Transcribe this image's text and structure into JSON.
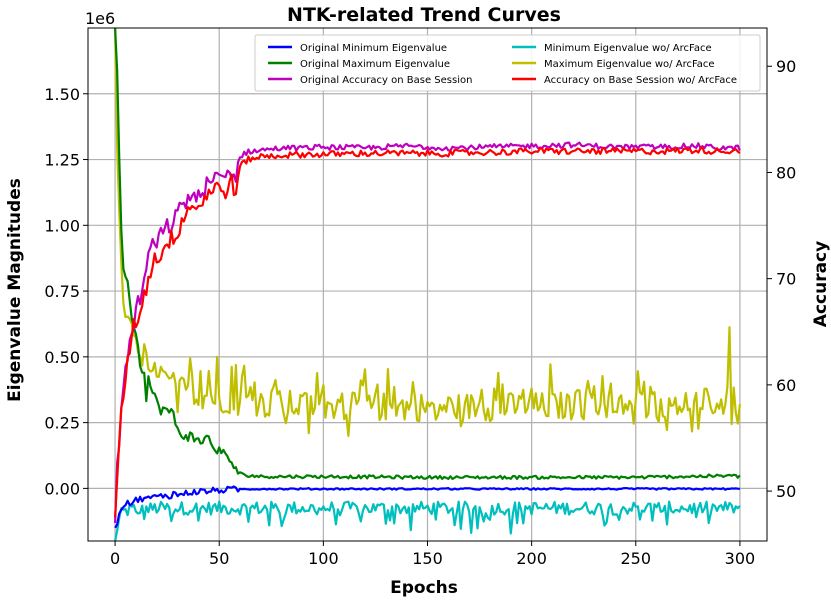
{
  "chart_data": {
    "type": "line",
    "title": "NTK-related Trend Curves",
    "xlabel": "Epochs",
    "ylabel_left": "Eigenvalue Magnitudes",
    "ylabel_right": "Accuracy",
    "left_axis_multiplier": "1e6",
    "xlim": [
      -13,
      313
    ],
    "ylim_left": [
      -0.2,
      1.75
    ],
    "ylim_right": [
      45.3,
      93.6
    ],
    "x_ticks": [
      0,
      50,
      100,
      150,
      200,
      250,
      300
    ],
    "x_tick_labels": [
      "0",
      "50",
      "100",
      "150",
      "200",
      "250",
      "300"
    ],
    "y_left_ticks": [
      0.0,
      0.25,
      0.5,
      0.75,
      1.0,
      1.25,
      1.5
    ],
    "y_left_tick_labels": [
      "0.00",
      "0.25",
      "0.50",
      "0.75",
      "1.00",
      "1.25",
      "1.50"
    ],
    "y_right_ticks": [
      50,
      60,
      70,
      80,
      90
    ],
    "y_right_tick_labels": [
      "50",
      "60",
      "70",
      "80",
      "90"
    ],
    "grid": true,
    "legend_position": "top",
    "series": [
      {
        "name": "Original Minimum Eigenvalue",
        "color": "#0000ff",
        "axis": "left",
        "x": [
          0,
          2,
          4,
          6,
          8,
          10,
          12,
          14,
          16,
          18,
          20,
          22,
          24,
          26,
          28,
          30,
          33,
          36,
          40,
          45,
          50,
          55,
          60,
          70,
          80,
          100,
          150,
          200,
          250,
          300
        ],
        "values": [
          -0.15,
          -0.1,
          -0.07,
          -0.05,
          -0.06,
          -0.045,
          -0.04,
          -0.035,
          -0.04,
          -0.03,
          -0.035,
          -0.03,
          -0.025,
          -0.03,
          -0.02,
          -0.025,
          -0.02,
          -0.015,
          -0.012,
          -0.01,
          -0.007,
          -0.005,
          -0.003,
          -0.002,
          -0.002,
          -0.002,
          -0.002,
          -0.002,
          -0.002,
          -0.002
        ]
      },
      {
        "name": "Original Maximum Eigenvalue",
        "color": "#008000",
        "axis": "left",
        "x": [
          0,
          1,
          2,
          3,
          4,
          5,
          6,
          7,
          8,
          10,
          12,
          14,
          15,
          16,
          18,
          20,
          22,
          24,
          26,
          28,
          30,
          33,
          36,
          39,
          42,
          44,
          46,
          48,
          50,
          53,
          56,
          59,
          62,
          66,
          70,
          80,
          100,
          150,
          200,
          250,
          295,
          300
        ],
        "values": [
          1.75,
          1.6,
          1.25,
          1.0,
          0.85,
          0.8,
          0.78,
          0.72,
          0.65,
          0.6,
          0.47,
          0.45,
          0.35,
          0.42,
          0.36,
          0.33,
          0.3,
          0.3,
          0.29,
          0.28,
          0.22,
          0.2,
          0.2,
          0.18,
          0.18,
          0.21,
          0.16,
          0.15,
          0.15,
          0.12,
          0.1,
          0.06,
          0.05,
          0.048,
          0.045,
          0.045,
          0.045,
          0.042,
          0.042,
          0.042,
          0.048,
          0.045
        ]
      },
      {
        "name": "Original Accuracy on Base Session",
        "color": "#bf00bf",
        "axis": "right",
        "x": [
          0,
          1,
          2,
          3,
          4,
          5,
          6,
          7,
          8,
          9,
          10,
          12,
          14,
          16,
          18,
          20,
          22,
          24,
          26,
          28,
          30,
          32,
          34,
          36,
          38,
          40,
          42,
          44,
          46,
          48,
          50,
          52,
          54,
          56,
          58,
          60,
          62,
          65,
          70,
          80,
          90,
          100,
          120,
          140,
          160,
          180,
          200,
          220,
          240,
          260,
          280,
          290,
          300
        ],
        "values": [
          47,
          52,
          55,
          58,
          60,
          62,
          63,
          64,
          65,
          66,
          67,
          68,
          70,
          72,
          73,
          73.5,
          74,
          74.5,
          75,
          75.5,
          76,
          76.8,
          77.3,
          77.8,
          77.8,
          77.5,
          78.3,
          78.8,
          79,
          79.3,
          79.4,
          79.5,
          79.8,
          80.2,
          79.5,
          81.5,
          81.8,
          82,
          82.1,
          82.3,
          82.3,
          82.4,
          82.3,
          82.5,
          82.3,
          82.4,
          82.5,
          82.6,
          82.4,
          82.4,
          82.5,
          82.3,
          82.3
        ]
      },
      {
        "name": "Minimum Eigenvalue wo/ ArcFace",
        "color": "#00bfbf",
        "axis": "left",
        "x": [
          0,
          1,
          2,
          3,
          4,
          6,
          8,
          10,
          15,
          20,
          30,
          40,
          60,
          100,
          150,
          200,
          250,
          300
        ],
        "values": [
          -0.2,
          -0.15,
          -0.12,
          -0.1,
          -0.09,
          -0.085,
          -0.08,
          -0.08,
          -0.08,
          -0.075,
          -0.075,
          -0.075,
          -0.075,
          -0.075,
          -0.075,
          -0.075,
          -0.075,
          -0.075
        ]
      },
      {
        "name": "Maximum Eigenvalue wo/ ArcFace",
        "color": "#bfbf00",
        "axis": "left",
        "x": [
          0,
          1,
          2,
          3,
          4,
          5,
          6,
          7,
          8,
          9,
          10,
          12,
          14,
          16,
          18,
          20,
          22,
          24,
          26,
          28,
          30,
          35,
          40,
          45,
          50,
          55,
          60,
          70,
          80,
          100,
          150,
          200,
          250,
          300
        ],
        "values": [
          1.75,
          1.3,
          1.05,
          0.85,
          0.72,
          0.66,
          0.65,
          0.64,
          0.63,
          0.6,
          0.58,
          0.52,
          0.5,
          0.47,
          0.45,
          0.42,
          0.42,
          0.41,
          0.4,
          0.39,
          0.38,
          0.37,
          0.36,
          0.35,
          0.34,
          0.34,
          0.33,
          0.32,
          0.32,
          0.31,
          0.31,
          0.31,
          0.32,
          0.33
        ]
      },
      {
        "name": "Accuracy on Base Session wo/ ArcFace",
        "color": "#ff0000",
        "axis": "right",
        "x": [
          0,
          1,
          2,
          3,
          4,
          5,
          6,
          7,
          8,
          9,
          10,
          12,
          14,
          16,
          18,
          20,
          22,
          24,
          26,
          28,
          30,
          32,
          34,
          36,
          38,
          40,
          42,
          44,
          46,
          48,
          50,
          52,
          54,
          56,
          58,
          60,
          62,
          65,
          70,
          80,
          90,
          100,
          120,
          140,
          160,
          180,
          200,
          220,
          240,
          260,
          280,
          290,
          300
        ],
        "values": [
          47.5,
          51,
          54,
          57,
          59,
          61,
          62,
          63.5,
          64.5,
          65.5,
          66,
          67,
          68.5,
          70,
          71.5,
          72,
          72.5,
          73,
          73.5,
          74,
          74.5,
          75.5,
          76.3,
          76.8,
          77,
          76.5,
          77.5,
          78,
          78.2,
          78.5,
          78.5,
          78.3,
          78.5,
          79,
          78.2,
          80.5,
          81,
          81.3,
          81.5,
          81.6,
          81.7,
          81.7,
          81.8,
          81.8,
          81.8,
          81.9,
          82,
          82,
          82,
          82,
          82.1,
          82,
          82.1
        ]
      }
    ]
  }
}
